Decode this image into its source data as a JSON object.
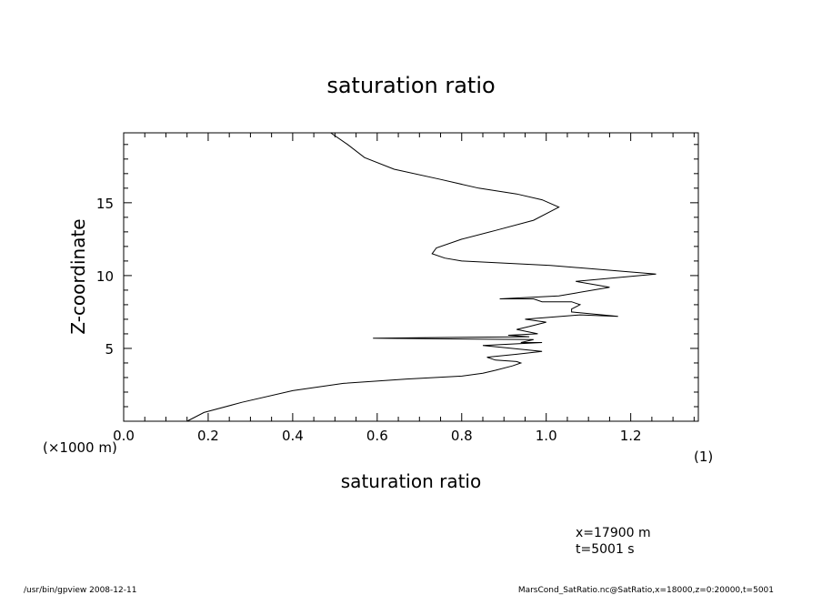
{
  "chart_data": {
    "type": "line",
    "title": "saturation ratio",
    "xlabel": "saturation ratio",
    "ylabel": "Z-coordinate",
    "x_unit_label": "(1)",
    "y_unit_label": "(×1000 m)",
    "xlim": [
      0.0,
      1.36
    ],
    "ylim": [
      0.0,
      19.8
    ],
    "x_ticks": [
      "0.0",
      "0.2",
      "0.4",
      "0.6",
      "0.8",
      "1.0",
      "1.2"
    ],
    "x_tick_values": [
      0.0,
      0.2,
      0.4,
      0.6,
      0.8,
      1.0,
      1.2
    ],
    "y_ticks": [
      "5",
      "10",
      "15"
    ],
    "y_tick_values": [
      5,
      10,
      15
    ],
    "grid": false,
    "series": [
      {
        "x": [
          0.15,
          0.19,
          0.28,
          0.4,
          0.52,
          0.67,
          0.8,
          0.85,
          0.88,
          0.92,
          0.94,
          0.93,
          0.88,
          0.86,
          0.93,
          0.99,
          0.85,
          0.99,
          0.94,
          0.97,
          0.59,
          0.96,
          0.91,
          0.98,
          0.93,
          0.96,
          1.0,
          0.95,
          1.08,
          1.17,
          1.06,
          1.06,
          1.08,
          1.06,
          0.99,
          0.97,
          0.89,
          1.03,
          1.07,
          1.15,
          1.11,
          1.07,
          1.26,
          1.01,
          0.8,
          0.76,
          0.73,
          0.74,
          0.8,
          0.88,
          0.97,
          1.03,
          0.99,
          0.93,
          0.84,
          0.75,
          0.64,
          0.57,
          0.53,
          0.49
        ],
        "y": [
          0.0,
          0.6,
          1.3,
          2.1,
          2.6,
          2.9,
          3.1,
          3.3,
          3.5,
          3.8,
          4.0,
          4.1,
          4.2,
          4.4,
          4.6,
          4.8,
          5.2,
          5.4,
          5.4,
          5.6,
          5.7,
          5.8,
          5.9,
          6.0,
          6.3,
          6.5,
          6.8,
          7.0,
          7.3,
          7.2,
          7.5,
          7.7,
          8.0,
          8.2,
          8.2,
          8.4,
          8.4,
          8.6,
          8.8,
          9.2,
          9.4,
          9.6,
          10.1,
          10.7,
          11.0,
          11.2,
          11.5,
          11.9,
          12.5,
          13.1,
          13.8,
          14.7,
          15.2,
          15.6,
          16.0,
          16.6,
          17.3,
          18.1,
          19.0,
          19.8
        ]
      }
    ],
    "annotations": [
      "x=17900  m",
      "t=5001  s"
    ]
  },
  "footer": {
    "left": "/usr/bin/gpview   2008-12-11",
    "right": "MarsCond_SatRatio.nc@SatRatio,x=18000,z=0:20000,t=5001"
  }
}
